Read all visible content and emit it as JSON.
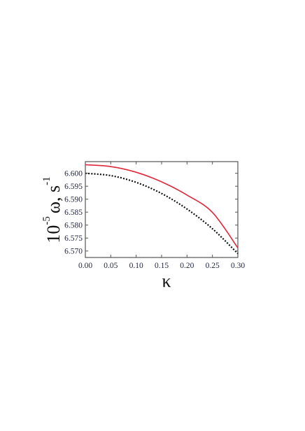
{
  "chart_data": {
    "type": "line",
    "title": "",
    "xlabel": "κ",
    "ylabel": {
      "prefix": "10",
      "prefix_exponent": "-5",
      "body": "ω, s",
      "body_exponent": "-1"
    },
    "xlim": [
      0.0,
      0.3
    ],
    "ylim": [
      6.5675,
      6.6045
    ],
    "x_ticks": [
      0.0,
      0.05,
      0.1,
      0.15,
      0.2,
      0.25,
      0.3
    ],
    "x_tick_labels": [
      "0.00",
      "0.05",
      "0.10",
      "0.15",
      "0.20",
      "0.25",
      "0.30"
    ],
    "y_ticks": [
      6.57,
      6.575,
      6.58,
      6.585,
      6.59,
      6.595,
      6.6
    ],
    "y_tick_labels": [
      "6.570",
      "6.575",
      "6.580",
      "6.585",
      "6.590",
      "6.595",
      "6.600"
    ],
    "grid": false,
    "legend": "none",
    "series": [
      {
        "style": "solid",
        "color": "#e0283c",
        "x": [
          0.0,
          0.05,
          0.1,
          0.15,
          0.2,
          0.25,
          0.3
        ],
        "y": [
          6.6033,
          6.6026,
          6.6004,
          6.5967,
          6.5916,
          6.5849,
          6.5712
        ]
      },
      {
        "style": "dotted",
        "color": "#111111",
        "x": [
          0.0,
          0.05,
          0.1,
          0.15,
          0.2,
          0.25,
          0.3
        ],
        "y": [
          6.6,
          6.5991,
          6.5965,
          6.5922,
          6.5862,
          6.5786,
          6.569
        ]
      }
    ]
  }
}
